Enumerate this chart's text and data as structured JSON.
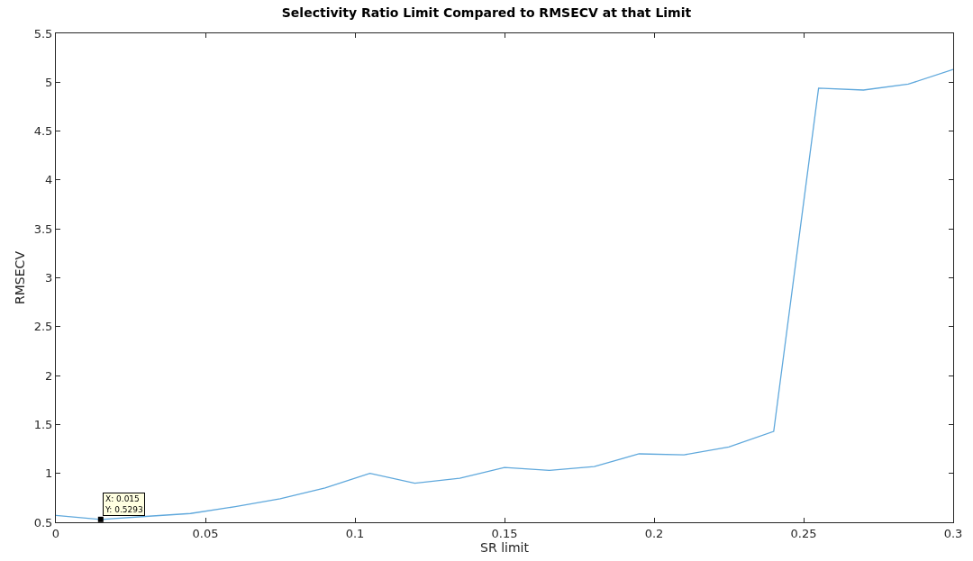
{
  "chart_data": {
    "type": "line",
    "title": "Selectivity Ratio Limit Compared to RMSECV at that Limit",
    "xlabel": "SR limit",
    "ylabel": "RMSECV",
    "x": [
      0,
      0.015,
      0.03,
      0.045,
      0.06,
      0.075,
      0.09,
      0.105,
      0.12,
      0.135,
      0.15,
      0.165,
      0.18,
      0.195,
      0.21,
      0.225,
      0.24,
      0.255,
      0.27,
      0.285,
      0.3
    ],
    "series": [
      {
        "color": "#5fa8dc",
        "values": [
          0.57,
          0.5293,
          0.56,
          0.59,
          0.66,
          0.74,
          0.85,
          1.0,
          0.9,
          0.95,
          1.06,
          1.03,
          1.07,
          1.2,
          1.19,
          1.27,
          1.43,
          4.94,
          4.92,
          4.98,
          5.13
        ]
      }
    ],
    "xlim": [
      0,
      0.3
    ],
    "xticks": [
      0,
      0.05,
      0.1,
      0.15,
      0.2,
      0.25,
      0.3
    ],
    "ylim": [
      0.5,
      5.5
    ],
    "yticks": [
      0.5,
      1,
      1.5,
      2,
      2.5,
      3,
      3.5,
      4,
      4.5,
      5,
      5.5
    ],
    "annotations": [
      {
        "text": "X: 0.015\nY: 0.5293",
        "x": 0.015,
        "y": 0.5293
      }
    ],
    "grid": false,
    "marker": "none",
    "line_style": "solid"
  }
}
